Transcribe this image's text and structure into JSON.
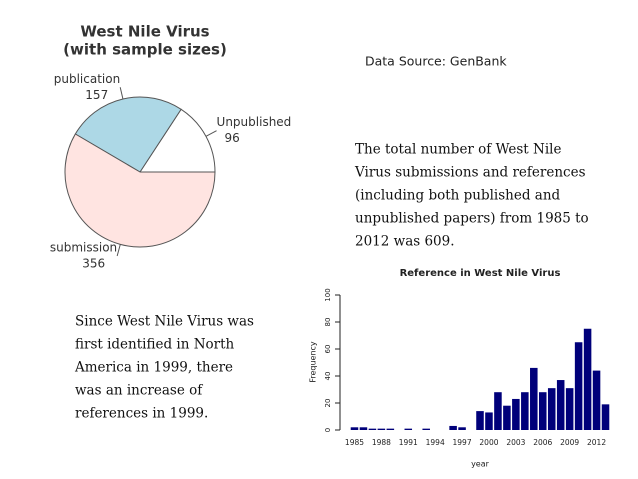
{
  "source": "Data Source: GenBank",
  "summary": [
    "The total number of West Nile",
    "Virus submissions and references",
    "(including both published and",
    "unpublished papers) from 1985 to",
    "2012 was 609."
  ],
  "note": [
    "Since West Nile Virus was",
    "first identified in North",
    "America in 1999, there",
    "was an increase of",
    "references in 1999."
  ],
  "chart_data": [
    {
      "type": "pie",
      "title": "West Nile Virus",
      "subtitle": "(with sample sizes)",
      "categories": [
        "Unpublished",
        "publication",
        "submission"
      ],
      "values": [
        96,
        157,
        356
      ],
      "colors": [
        "#ffffff",
        "#add8e6",
        "#ffe4e1"
      ]
    },
    {
      "type": "bar",
      "title": "Reference in West Nile Virus",
      "x_label": "year",
      "y_label": "Frequency",
      "categories": [
        "1985",
        null,
        null,
        "1988",
        null,
        null,
        "1991",
        null,
        null,
        "1994",
        null,
        null,
        "1997",
        null,
        null,
        "2000",
        null,
        null,
        "2003",
        null,
        null,
        "2006",
        null,
        null,
        "2009",
        null,
        null,
        "2012",
        null
      ],
      "values": [
        2,
        2,
        1,
        1,
        1,
        0,
        1,
        0,
        1,
        0,
        0,
        3,
        2,
        0,
        14,
        13,
        28,
        18,
        23,
        28,
        46,
        28,
        31,
        37,
        31,
        65,
        75,
        44,
        19
      ],
      "color": "#00007a",
      "ylim": [
        0,
        100
      ],
      "yticks": [
        0,
        20,
        40,
        60,
        80,
        100
      ]
    }
  ]
}
